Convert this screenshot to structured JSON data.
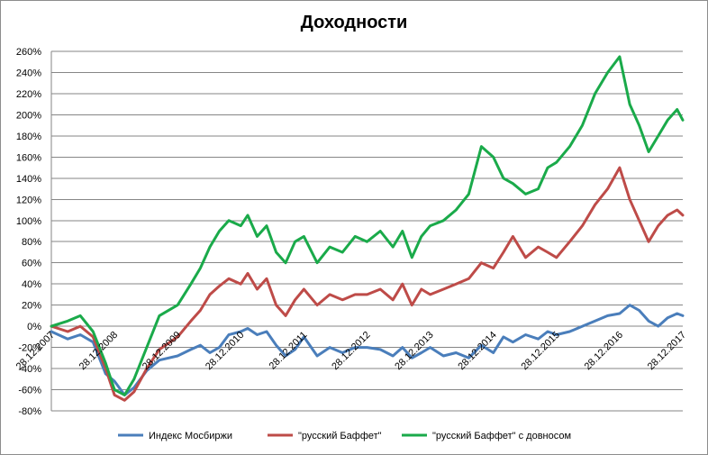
{
  "chart_data": {
    "type": "line",
    "title": "Доходности",
    "xlabel": "",
    "ylabel": "",
    "ylim": [
      -80,
      260
    ],
    "y_ticks": [
      "-80%",
      "-60%",
      "-40%",
      "-20%",
      "0%",
      "20%",
      "40%",
      "60%",
      "80%",
      "100%",
      "120%",
      "140%",
      "160%",
      "180%",
      "200%",
      "220%",
      "240%",
      "260%"
    ],
    "y_tick_values": [
      -80,
      -60,
      -40,
      -20,
      0,
      20,
      40,
      60,
      80,
      100,
      120,
      140,
      160,
      180,
      200,
      220,
      240,
      260
    ],
    "x_ticks": [
      "28.12.2007",
      "28.12.2008",
      "28.12.2009",
      "28.12.2010",
      "28.12.2011",
      "28.12.2012",
      "28.12.2013",
      "28.12.2014",
      "28.12.2015",
      "28.12.2016",
      "28.12.2017"
    ],
    "x_tick_values": [
      2007.99,
      2008.99,
      2009.99,
      2010.99,
      2011.99,
      2012.99,
      2013.99,
      2014.99,
      2015.99,
      2016.99,
      2017.99
    ],
    "grid": "horizontal",
    "legend_position": "bottom",
    "series": [
      {
        "name": "Индекс Мосбиржи",
        "color": "#4a7ebb",
        "x": [
          2007.99,
          2008.25,
          2008.45,
          2008.65,
          2008.85,
          2008.99,
          2009.15,
          2009.3,
          2009.5,
          2009.7,
          2009.99,
          2010.2,
          2010.35,
          2010.5,
          2010.65,
          2010.8,
          2010.99,
          2011.1,
          2011.25,
          2011.4,
          2011.55,
          2011.7,
          2011.85,
          2011.99,
          2012.2,
          2012.4,
          2012.6,
          2012.8,
          2012.99,
          2013.2,
          2013.4,
          2013.55,
          2013.7,
          2013.85,
          2013.99,
          2014.2,
          2014.4,
          2014.6,
          2014.8,
          2014.99,
          2015.15,
          2015.3,
          2015.5,
          2015.7,
          2015.85,
          2015.99,
          2016.2,
          2016.4,
          2016.6,
          2016.8,
          2016.99,
          2017.15,
          2017.3,
          2017.45,
          2017.6,
          2017.75,
          2017.9,
          2017.99
        ],
        "values": [
          -5,
          -12,
          -8,
          -15,
          -45,
          -52,
          -65,
          -58,
          -42,
          -32,
          -28,
          -22,
          -18,
          -25,
          -20,
          -8,
          -5,
          -2,
          -8,
          -5,
          -18,
          -28,
          -22,
          -10,
          -28,
          -20,
          -25,
          -20,
          -20,
          -22,
          -28,
          -20,
          -30,
          -25,
          -20,
          -28,
          -25,
          -30,
          -18,
          -25,
          -10,
          -15,
          -8,
          -12,
          -5,
          -8,
          -5,
          0,
          5,
          10,
          12,
          20,
          15,
          5,
          0,
          8,
          12,
          10
        ]
      },
      {
        "name": "\"русский Баффет\"",
        "color": "#be4b48",
        "x": [
          2007.99,
          2008.25,
          2008.45,
          2008.65,
          2008.85,
          2008.99,
          2009.15,
          2009.3,
          2009.5,
          2009.7,
          2009.99,
          2010.2,
          2010.35,
          2010.5,
          2010.65,
          2010.8,
          2010.99,
          2011.1,
          2011.25,
          2011.4,
          2011.55,
          2011.7,
          2011.85,
          2011.99,
          2012.2,
          2012.4,
          2012.6,
          2012.8,
          2012.99,
          2013.2,
          2013.4,
          2013.55,
          2013.7,
          2013.85,
          2013.99,
          2014.2,
          2014.4,
          2014.6,
          2014.8,
          2014.99,
          2015.15,
          2015.3,
          2015.5,
          2015.7,
          2015.85,
          2015.99,
          2016.2,
          2016.4,
          2016.6,
          2016.8,
          2016.99,
          2017.15,
          2017.3,
          2017.45,
          2017.6,
          2017.75,
          2017.9,
          2017.99
        ],
        "values": [
          0,
          -5,
          0,
          -10,
          -40,
          -65,
          -70,
          -62,
          -40,
          -22,
          -10,
          5,
          15,
          30,
          38,
          45,
          40,
          50,
          35,
          45,
          20,
          10,
          25,
          35,
          20,
          30,
          25,
          30,
          30,
          35,
          25,
          40,
          20,
          35,
          30,
          35,
          40,
          45,
          60,
          55,
          70,
          85,
          65,
          75,
          70,
          65,
          80,
          95,
          115,
          130,
          150,
          120,
          100,
          80,
          95,
          105,
          110,
          105
        ]
      },
      {
        "name": "\"русский Баффет\"  с довносом",
        "color": "#1aaa4a",
        "x": [
          2007.99,
          2008.25,
          2008.45,
          2008.65,
          2008.85,
          2008.99,
          2009.15,
          2009.3,
          2009.5,
          2009.7,
          2009.99,
          2010.2,
          2010.35,
          2010.5,
          2010.65,
          2010.8,
          2010.99,
          2011.1,
          2011.25,
          2011.4,
          2011.55,
          2011.7,
          2011.85,
          2011.99,
          2012.2,
          2012.4,
          2012.6,
          2012.8,
          2012.99,
          2013.2,
          2013.4,
          2013.55,
          2013.7,
          2013.85,
          2013.99,
          2014.2,
          2014.4,
          2014.6,
          2014.8,
          2014.99,
          2015.15,
          2015.3,
          2015.5,
          2015.7,
          2015.85,
          2015.99,
          2016.2,
          2016.4,
          2016.6,
          2016.8,
          2016.99,
          2017.15,
          2017.3,
          2017.45,
          2017.6,
          2017.75,
          2017.9,
          2017.99
        ],
        "values": [
          0,
          5,
          10,
          -5,
          -35,
          -60,
          -65,
          -50,
          -20,
          10,
          20,
          40,
          55,
          75,
          90,
          100,
          95,
          105,
          85,
          95,
          70,
          60,
          80,
          85,
          60,
          75,
          70,
          85,
          80,
          90,
          75,
          90,
          65,
          85,
          95,
          100,
          110,
          125,
          170,
          160,
          140,
          135,
          125,
          130,
          150,
          155,
          170,
          190,
          220,
          240,
          255,
          210,
          190,
          165,
          180,
          195,
          205,
          195
        ]
      }
    ]
  }
}
